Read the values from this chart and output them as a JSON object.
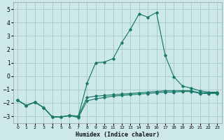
{
  "xlabel": "Humidex (Indice chaleur)",
  "background_color": "#cce8e8",
  "grid_color": "#aacccc",
  "line_color": "#1a7a6a",
  "xlim": [
    -0.5,
    23.5
  ],
  "ylim": [
    -3.5,
    5.5
  ],
  "yticks": [
    -3,
    -2,
    -1,
    0,
    1,
    2,
    3,
    4,
    5
  ],
  "xticks": [
    0,
    1,
    2,
    3,
    4,
    5,
    6,
    7,
    8,
    9,
    10,
    11,
    12,
    13,
    14,
    15,
    16,
    17,
    18,
    19,
    20,
    21,
    22,
    23
  ],
  "series": [
    {
      "x": [
        0,
        1,
        2,
        3,
        4,
        5,
        6,
        7,
        8,
        9,
        10,
        11,
        12,
        13,
        14,
        15,
        16,
        17,
        18,
        19,
        20,
        21,
        22,
        23
      ],
      "y": [
        -1.8,
        -2.2,
        -1.95,
        -2.35,
        -3.05,
        -3.05,
        -2.95,
        -3.1,
        -1.85,
        -1.7,
        -1.6,
        -1.5,
        -1.45,
        -1.4,
        -1.35,
        -1.3,
        -1.25,
        -1.2,
        -1.2,
        -1.15,
        -1.15,
        -1.3,
        -1.3,
        -1.3
      ]
    },
    {
      "x": [
        0,
        1,
        2,
        3,
        4,
        5,
        6,
        7,
        8,
        9,
        10,
        11,
        12,
        13,
        14,
        15,
        16,
        17,
        18,
        19,
        20,
        21,
        22,
        23
      ],
      "y": [
        -1.8,
        -2.2,
        -1.95,
        -2.35,
        -3.05,
        -3.05,
        -2.95,
        -3.0,
        -1.6,
        -1.5,
        -1.45,
        -1.4,
        -1.35,
        -1.3,
        -1.25,
        -1.2,
        -1.15,
        -1.1,
        -1.1,
        -1.1,
        -1.1,
        -1.25,
        -1.25,
        -1.25
      ]
    },
    {
      "x": [
        0,
        1,
        2,
        3,
        4,
        5,
        6,
        7,
        8,
        9,
        10,
        11,
        12,
        13,
        14,
        15,
        16,
        17,
        18,
        19,
        20,
        21,
        22,
        23
      ],
      "y": [
        -1.8,
        -2.2,
        -1.95,
        -2.35,
        -3.05,
        -3.05,
        -2.95,
        -3.0,
        -0.55,
        1.0,
        1.05,
        1.3,
        2.5,
        3.5,
        4.65,
        4.4,
        4.75,
        1.55,
        -0.05,
        -0.75,
        -0.9,
        -1.1,
        -1.2,
        -1.2
      ]
    }
  ]
}
